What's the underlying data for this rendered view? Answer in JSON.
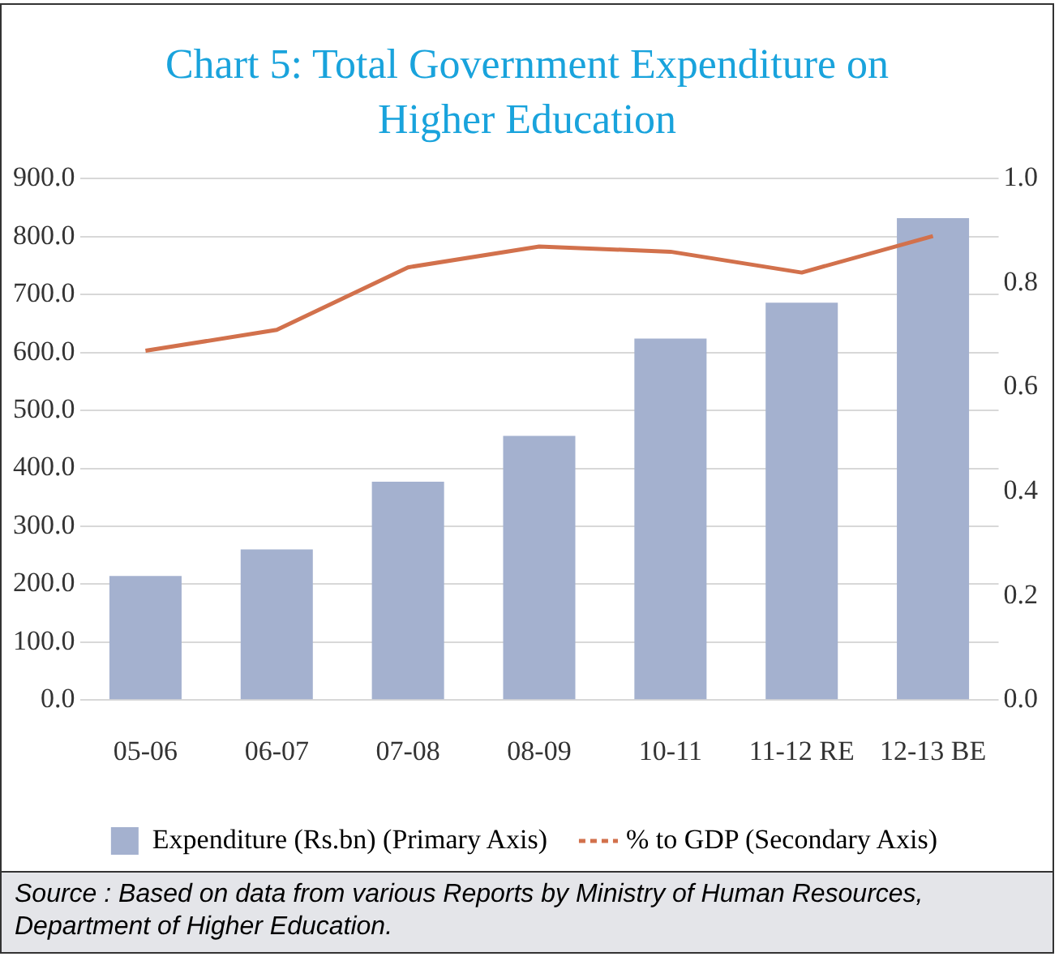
{
  "chart_data": {
    "type": "bar",
    "title": "Chart 5: Total Government Expenditure on Higher Education",
    "categories": [
      "05-06",
      "06-07",
      "07-08",
      "08-09",
      "10-11",
      "11-12 RE",
      "12-13 BE"
    ],
    "series": [
      {
        "name": "Expenditure (Rs.bn) (Primary Axis)",
        "color": "#a4b1cf",
        "values": [
          214,
          260,
          377,
          456,
          624,
          686,
          832
        ]
      },
      {
        "name": "% to GDP (Secondary Axis)",
        "type": "line",
        "axis": "y2",
        "color": "#d2714c",
        "values": [
          0.67,
          0.71,
          0.83,
          0.87,
          0.86,
          0.82,
          0.89
        ]
      }
    ],
    "ylim": [
      0,
      900
    ],
    "yticks": [
      {
        "value": 0,
        "label": "0.0"
      },
      {
        "value": 100,
        "label": "100.0"
      },
      {
        "value": 200,
        "label": "200.0"
      },
      {
        "value": 300,
        "label": "300.0"
      },
      {
        "value": 400,
        "label": "400.0"
      },
      {
        "value": 500,
        "label": "500.0"
      },
      {
        "value": 600,
        "label": "600.0"
      },
      {
        "value": 700,
        "label": "700.0"
      },
      {
        "value": 800,
        "label": "800.0"
      },
      {
        "value": 900,
        "label": "900.0"
      }
    ],
    "y2lim": [
      0,
      1
    ],
    "y2ticks": [
      {
        "value": 0,
        "label": "0.0"
      },
      {
        "value": 0.2,
        "label": "0.2"
      },
      {
        "value": 0.4,
        "label": "0.4"
      },
      {
        "value": 0.6,
        "label": "0.6"
      },
      {
        "value": 0.8,
        "label": "0.8"
      },
      {
        "value": 1,
        "label": "1.0"
      }
    ],
    "grid": "y",
    "legend": "bottom",
    "marker": "none",
    "annotations": [
      "Source : Based on data from various Reports by Ministry of Human Resources, Department of Higher Education."
    ]
  }
}
